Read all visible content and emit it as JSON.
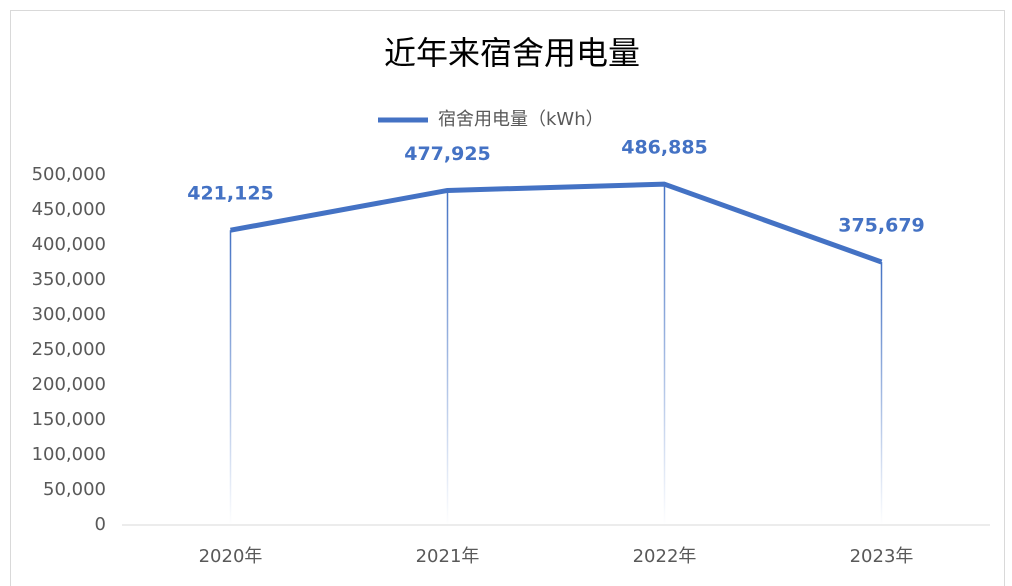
{
  "chart_data": {
    "type": "line",
    "title": "近年来宿舍用电量",
    "categories": [
      "2020年",
      "2021年",
      "2022年",
      "2023年"
    ],
    "series": [
      {
        "name": "宿舍用电量（kWh）",
        "color": "#4472c4",
        "values": [
          421125,
          477925,
          486885,
          375679
        ],
        "value_labels": [
          "421,125",
          "477,925",
          "486,885",
          "375,679"
        ]
      }
    ],
    "ylim": [
      0,
      500000
    ],
    "yticks": [
      0,
      {
        "value": 50000,
        "label": "50,000"
      },
      {
        "value": 100000,
        "label": "100,000"
      },
      {
        "value": 150000,
        "label": "150,000"
      },
      {
        "value": 200000,
        "label": "200,000"
      },
      {
        "value": 250000,
        "label": "250,000"
      },
      {
        "value": 300000,
        "label": "300,000"
      },
      {
        "value": 350000,
        "label": "350,000"
      },
      {
        "value": 400000,
        "label": "400,000"
      },
      {
        "value": 450000,
        "label": "450,000"
      },
      {
        "value": 500000,
        "label": "500,000"
      }
    ],
    "legend": "top",
    "grid": false,
    "drop_lines": true
  }
}
